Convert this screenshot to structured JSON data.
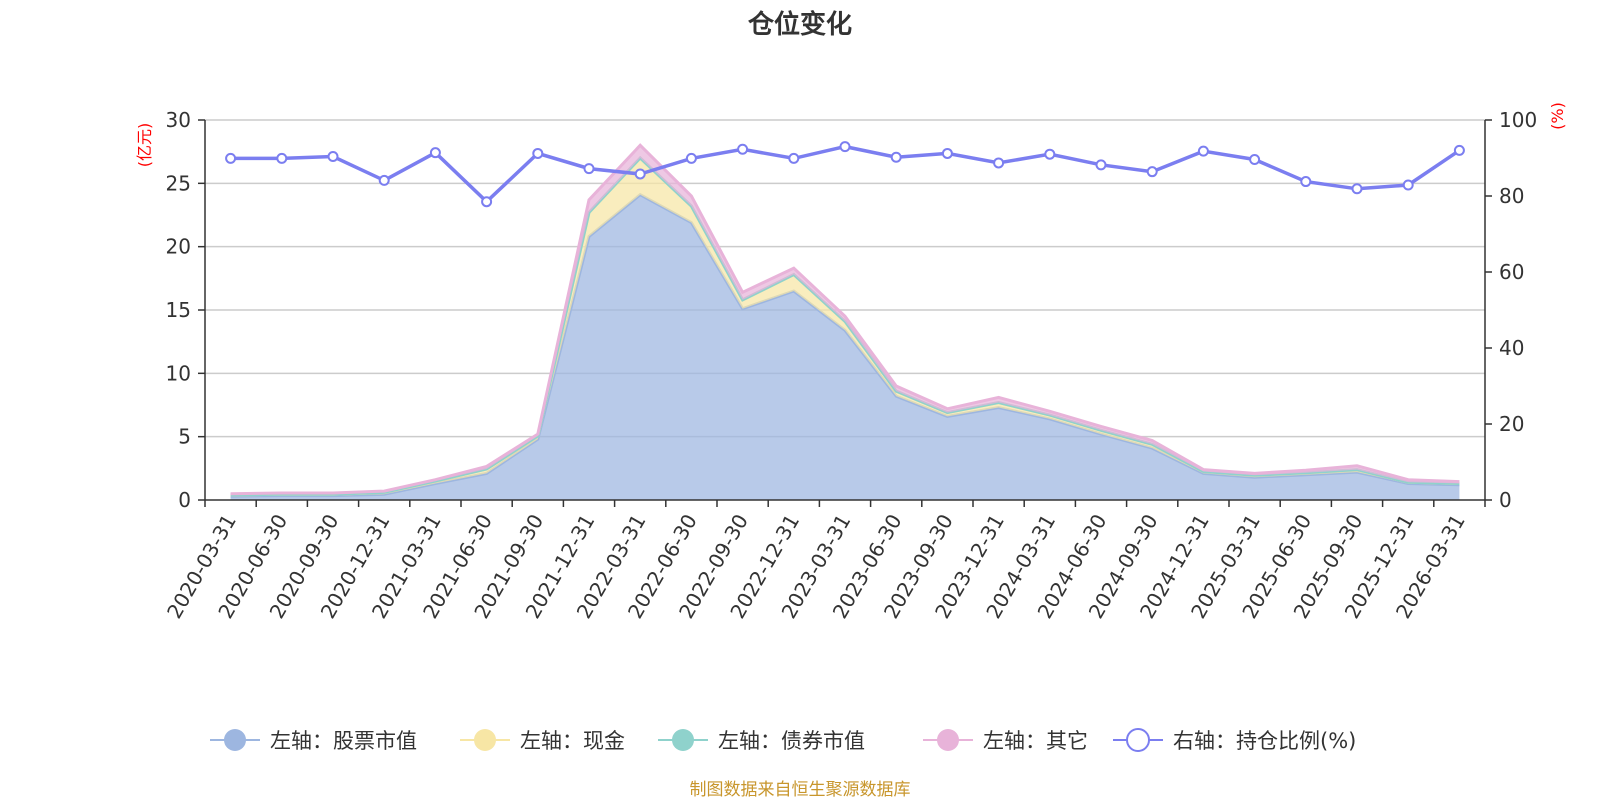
{
  "chart_data": {
    "type": "area",
    "title": "仓位变化",
    "left_axis_unit": "(亿元)",
    "right_axis_unit": "(%)",
    "left_ylim": [
      0,
      30
    ],
    "left_ticks": [
      "0",
      "5",
      "10",
      "15",
      "20",
      "25",
      "30"
    ],
    "right_ylim": [
      0,
      100
    ],
    "right_ticks": [
      "0",
      "20",
      "40",
      "60",
      "80",
      "100"
    ],
    "categories": [
      "2020-03-31",
      "2020-06-30",
      "2020-09-30",
      "2020-12-31",
      "2021-03-31",
      "2021-06-30",
      "2021-09-30",
      "2021-12-31",
      "2022-03-31",
      "2022-06-30",
      "2022-09-30",
      "2022-12-31",
      "2023-03-31",
      "2023-06-30",
      "2023-09-30",
      "2023-12-31",
      "2024-03-31",
      "2024-06-30",
      "2024-09-30",
      "2024-12-31",
      "2025-03-31",
      "2025-06-30",
      "2025-09-30",
      "2025-12-31",
      "2026-03-31"
    ],
    "series": [
      {
        "name": "左轴：股票市值",
        "axis": "left",
        "color": "#9db6e0",
        "values": [
          0.3,
          0.35,
          0.35,
          0.45,
          1.3,
          2.1,
          4.8,
          20.8,
          24.1,
          21.9,
          15.1,
          16.5,
          13.4,
          8.2,
          6.6,
          7.3,
          6.4,
          5.2,
          4.1,
          2.1,
          1.8,
          2.0,
          2.2,
          1.3,
          1.2
        ]
      },
      {
        "name": "左轴：现金",
        "axis": "left",
        "color": "#f7e6a5",
        "values": [
          0.1,
          0.1,
          0.1,
          0.15,
          0.2,
          0.35,
          0.25,
          1.9,
          2.9,
          1.3,
          0.7,
          1.3,
          0.7,
          0.4,
          0.3,
          0.4,
          0.3,
          0.3,
          0.3,
          0.15,
          0.15,
          0.15,
          0.2,
          0.1,
          0.1
        ]
      },
      {
        "name": "左轴：债券市值",
        "axis": "left",
        "color": "#8fd2cc",
        "values": [
          0,
          0,
          0,
          0,
          0,
          0,
          0,
          0,
          0,
          0,
          0,
          0,
          0,
          0,
          0,
          0,
          0,
          0,
          0,
          0,
          0,
          0,
          0,
          0,
          0
        ]
      },
      {
        "name": "左轴：其它",
        "axis": "left",
        "color": "#e8b3d9",
        "values": [
          0.1,
          0.1,
          0.1,
          0.1,
          0.1,
          0.2,
          0.15,
          1.0,
          1.0,
          0.8,
          0.6,
          0.5,
          0.4,
          0.4,
          0.3,
          0.4,
          0.3,
          0.3,
          0.3,
          0.15,
          0.15,
          0.2,
          0.3,
          0.2,
          0.15
        ]
      },
      {
        "name": "右轴：持仓比例(%)",
        "axis": "right",
        "color": "#7b7ef0",
        "values": [
          89.9,
          89.9,
          90.4,
          84.1,
          91.4,
          78.5,
          91.2,
          87.2,
          85.8,
          89.9,
          92.3,
          89.9,
          93.0,
          90.2,
          91.2,
          88.7,
          91.0,
          88.2,
          86.4,
          91.8,
          89.6,
          83.8,
          81.9,
          82.9,
          92.0
        ]
      }
    ],
    "footer": "制图数据来自恒生聚源数据库"
  }
}
